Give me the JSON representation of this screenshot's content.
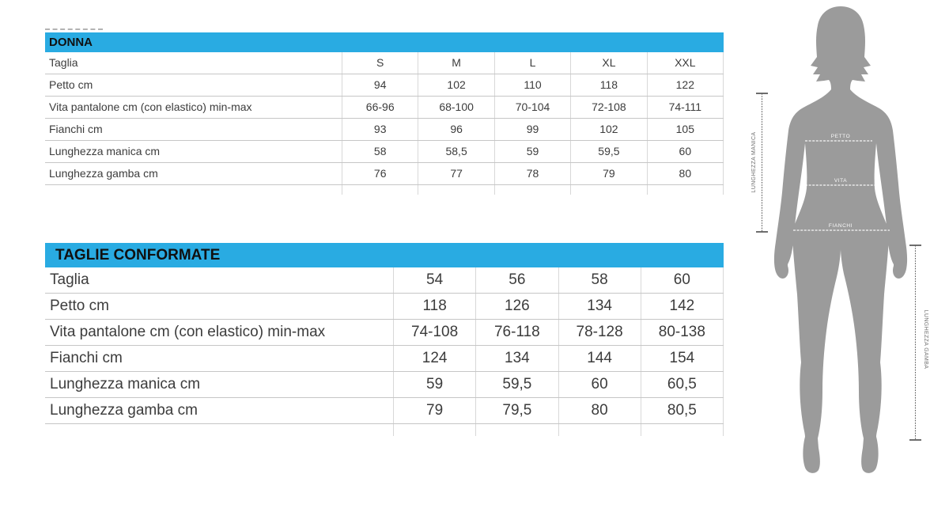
{
  "colors": {
    "header_bg": "#29abe2",
    "header_text": "#101010",
    "row_text": "#3c3c3c",
    "border_horizontal": "#c6c6c6",
    "border_vertical": "#d8d8d8",
    "silhouette_gray": "#9b9b9b",
    "measure_line_gray": "#5d5d5d"
  },
  "tables": [
    {
      "id": "donna",
      "title": "DONNA",
      "rows": [
        {
          "label": "Taglia",
          "values": [
            "S",
            "M",
            "L",
            "XL",
            "XXL"
          ]
        },
        {
          "label": "Petto cm",
          "values": [
            "94",
            "102",
            "110",
            "118",
            "122"
          ]
        },
        {
          "label": "Vita pantalone cm (con elastico) min-max",
          "values": [
            "66-96",
            "68-100",
            "70-104",
            "72-108",
            "74-111"
          ]
        },
        {
          "label": "Fianchi cm",
          "values": [
            "93",
            "96",
            "99",
            "102",
            "105"
          ]
        },
        {
          "label": "Lunghezza manica cm",
          "values": [
            "58",
            "58,5",
            "59",
            "59,5",
            "60"
          ]
        },
        {
          "label": "Lunghezza gamba cm",
          "values": [
            "76",
            "77",
            "78",
            "79",
            "80"
          ]
        }
      ]
    },
    {
      "id": "conformate",
      "title": "TAGLIE CONFORMATE",
      "rows": [
        {
          "label": "Taglia",
          "values": [
            "54",
            "56",
            "58",
            "60"
          ]
        },
        {
          "label": "Petto cm",
          "values": [
            "118",
            "126",
            "134",
            "142"
          ]
        },
        {
          "label": "Vita pantalone cm (con elastico) min-max",
          "values": [
            "74-108",
            "76-118",
            "78-128",
            "80-138"
          ]
        },
        {
          "label": "Fianchi cm",
          "values": [
            "124",
            "134",
            "144",
            "154"
          ]
        },
        {
          "label": "Lunghezza manica cm",
          "values": [
            "59",
            "59,5",
            "60",
            "60,5"
          ]
        },
        {
          "label": "Lunghezza gamba cm",
          "values": [
            "79",
            "79,5",
            "80",
            "80,5"
          ]
        }
      ]
    }
  ],
  "figure": {
    "labels": {
      "petto": "PETTO",
      "vita": "VITA",
      "fianchi": "FIANCHI",
      "manica": "LUNGHEZZA MANICA",
      "gamba": "LUNGHEZZA GAMBA"
    }
  }
}
